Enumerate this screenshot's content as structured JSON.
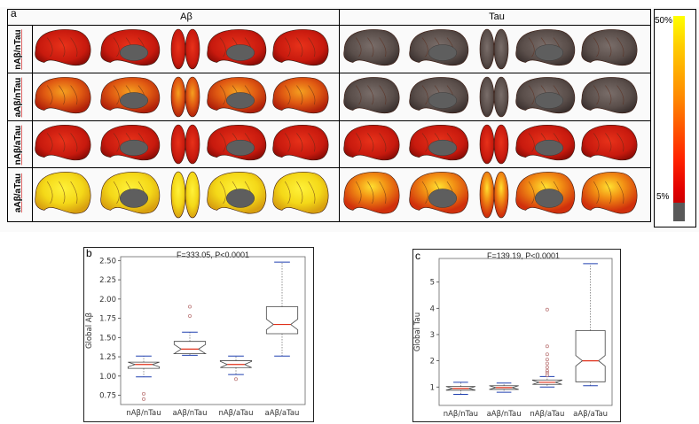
{
  "panel_a": {
    "letter": "a",
    "col_headers": [
      "Aβ",
      "Tau"
    ],
    "row_labels": [
      "nAβ/nTau",
      "aAβ/nTau",
      "nAβ/aTau",
      "aAβ/aTau"
    ],
    "colorbar": {
      "max_label": "50%",
      "min_label": "5%",
      "colors": [
        "#ffff00",
        "#ff9900",
        "#ff2200",
        "#cc0000",
        "#595959"
      ]
    }
  },
  "panel_b": {
    "letter": "b",
    "stat": "F=333.05, P<0.0001",
    "ylabel": "Global Aβ",
    "categories": [
      "nAβ/nTau",
      "aAβ/nTau",
      "nAβ/aTau",
      "aAβ/aTau"
    ],
    "yticks": [
      "0.75",
      "1.00",
      "1.25",
      "1.50",
      "1.75",
      "2.00",
      "2.25",
      "2.50"
    ]
  },
  "panel_c": {
    "letter": "c",
    "stat": "F=139.19, P<0.0001",
    "ylabel": "Global Tau",
    "categories": [
      "nAβ/nTau",
      "aAβ/nTau",
      "nAβ/aTau",
      "aAβ/aTau"
    ],
    "yticks": [
      "1",
      "2",
      "3",
      "4",
      "5"
    ]
  },
  "chart_data": [
    {
      "type": "box",
      "title": "F=333.05, P<0.0001",
      "ylabel": "Global Aβ",
      "ylim": [
        0.63,
        2.55
      ],
      "categories": [
        "nAβ/nTau",
        "aAβ/nTau",
        "nAβ/aTau",
        "aAβ/aTau"
      ],
      "boxes": [
        {
          "whislo": 0.99,
          "q1": 1.1,
          "med": 1.15,
          "q3": 1.18,
          "whishi": 1.26,
          "fliers": [
            0.77,
            0.7
          ]
        },
        {
          "whislo": 1.27,
          "q1": 1.29,
          "med": 1.35,
          "q3": 1.45,
          "whishi": 1.57,
          "fliers": [
            1.78,
            1.9
          ]
        },
        {
          "whislo": 1.02,
          "q1": 1.11,
          "med": 1.15,
          "q3": 1.2,
          "whishi": 1.26,
          "fliers": [
            0.96
          ]
        },
        {
          "whislo": 1.26,
          "q1": 1.55,
          "med": 1.67,
          "q3": 1.9,
          "whishi": 2.48,
          "fliers": []
        }
      ]
    },
    {
      "type": "box",
      "title": "F=139.19, P<0.0001",
      "ylabel": "Global Tau",
      "ylim": [
        0.3,
        5.9
      ],
      "categories": [
        "nAβ/nTau",
        "aAβ/nTau",
        "nAβ/aTau",
        "aAβ/aTau"
      ],
      "boxes": [
        {
          "whislo": 0.72,
          "q1": 0.88,
          "med": 0.95,
          "q3": 1.02,
          "whishi": 1.18,
          "fliers": []
        },
        {
          "whislo": 0.8,
          "q1": 0.91,
          "med": 0.98,
          "q3": 1.05,
          "whishi": 1.15,
          "fliers": []
        },
        {
          "whislo": 1.0,
          "q1": 1.1,
          "med": 1.18,
          "q3": 1.27,
          "whishi": 1.4,
          "fliers": [
            1.45,
            1.55,
            1.62,
            1.75,
            1.9,
            2.05,
            2.25,
            2.55,
            3.95
          ]
        },
        {
          "whislo": 1.05,
          "q1": 1.2,
          "med": 2.0,
          "q3": 3.15,
          "whishi": 5.7,
          "fliers": []
        }
      ]
    }
  ]
}
